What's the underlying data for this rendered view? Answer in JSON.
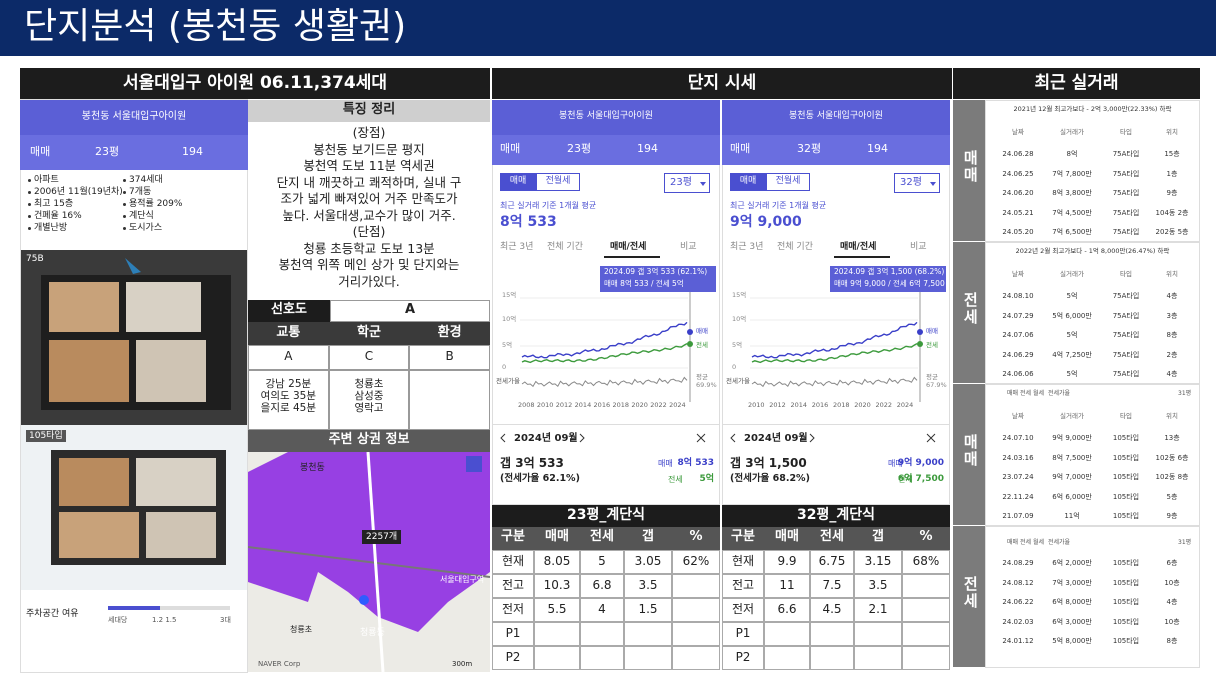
{
  "header": {
    "title": "단지분석 (봉천동 생활권)"
  },
  "sections": [
    "서울대입구 아이원 06.11,374세대",
    "단지 시세",
    "최근 실거래"
  ],
  "app": {
    "nav": "봉천동 서울대입구아이원",
    "tabs": [
      "매매",
      "23평",
      "194"
    ],
    "info": [
      "아파트",
      "374세대",
      "2006년 11월(19년차)",
      "7개동",
      "최고 15층",
      "용적률 209%",
      "건폐율 16%",
      "계단식",
      "개별난방",
      "도시가스"
    ],
    "plans": [
      "75B",
      "105타입"
    ],
    "parking": {
      "label": "주차공간 여유",
      "scale": [
        "세대당",
        "1.2 1.5",
        "3대"
      ]
    }
  },
  "features": {
    "title": "특징 정리",
    "lines": [
      "(장점)",
      "봉천동 보기드문 평지",
      "봉천역 도보 11분 역세권",
      "단지 내 깨끗하고 쾌적하며, 실내 구",
      "조가 넓게 빠져있어 거주 만족도가",
      "높다. 서울대생,교수가 많이 거주.",
      "(단점)",
      "청룡 초등학교 도보 13분",
      "봉천역 위쪽 메인 상가 및 단지와는",
      "거리가있다."
    ]
  },
  "rating": {
    "label": "선호도",
    "grade": "A",
    "headers": [
      "교통",
      "학군",
      "환경"
    ],
    "grades": [
      "A",
      "C",
      "B"
    ],
    "notes": [
      [
        "강남 25분",
        "여의도 35분",
        "을지로 45분"
      ],
      [
        "청룡초",
        "삼성중",
        "영락고"
      ]
    ]
  },
  "commercial": {
    "title": "주변 상권 정보",
    "count": "2257개",
    "labels": [
      "봉천동",
      "서울대입구역",
      "청룡동",
      "청룡초",
      "300m",
      "NAVER Corp"
    ]
  },
  "prices": [
    {
      "nav": "봉천동 서울대입구아이원",
      "tabs": [
        "매매",
        "23평",
        "194"
      ],
      "toggle": [
        "매매",
        "전월세"
      ],
      "select": "23평",
      "caption": "최근 실거래 기준 1개월 평균",
      "price": "8억 533",
      "periods": [
        "최근 3년",
        "전체 기간",
        "매매/전세",
        "비교"
      ],
      "tooltip": [
        "2024.09 갭 3억 533 (62.1%)",
        "매매 8억 533 / 전세 5억"
      ],
      "yaxis": [
        "15억",
        "10억",
        "5억",
        "0"
      ],
      "ratio_label": "전세가율",
      "legend": [
        "매매",
        "전세"
      ],
      "avg": [
        "평균",
        "69.9%"
      ],
      "years": [
        "2008",
        "2010",
        "2012",
        "2014",
        "2016",
        "2018",
        "2020",
        "2022",
        "2024"
      ],
      "month": "2024년 09월",
      "gap": "갭 3억 533",
      "ratio": "(전세가율 62.1%)",
      "sale": [
        "매매",
        "8억 533"
      ],
      "jeonse": [
        "전세",
        "5억"
      ]
    },
    {
      "nav": "봉천동 서울대입구아이원",
      "tabs": [
        "매매",
        "32평",
        "194"
      ],
      "toggle": [
        "매매",
        "전월세"
      ],
      "select": "32평",
      "caption": "최근 실거래 기준 1개월 평균",
      "price": "9억 9,000",
      "periods": [
        "최근 3년",
        "전체 기간",
        "매매/전세",
        "비교"
      ],
      "tooltip": [
        "2024.09 갭 3억 1,500 (68.2%)",
        "매매 9억 9,000 / 전세 6억 7,500"
      ],
      "yaxis": [
        "15억",
        "10억",
        "5억",
        "0"
      ],
      "ratio_label": "전세가율",
      "legend": [
        "매매",
        "전세"
      ],
      "avg": [
        "평균",
        "67.9%"
      ],
      "years": [
        "2010",
        "2012",
        "2014",
        "2016",
        "2018",
        "2020",
        "2022",
        "2024"
      ],
      "month": "2024년 09월",
      "gap": "갭 3억 1,500",
      "ratio": "(전세가율 68.2%)",
      "sale": [
        "매매",
        "9억 9,000"
      ],
      "jeonse": [
        "전세",
        "6억 7,500"
      ]
    }
  ],
  "tables": [
    {
      "title": "23평_계단식",
      "header": [
        "구분",
        "매매",
        "전세",
        "갭",
        "%"
      ],
      "rows": [
        [
          "현재",
          "8.05",
          "5",
          "3.05",
          "62%"
        ],
        [
          "전고",
          "10.3",
          "6.8",
          "3.5",
          null
        ],
        [
          "전저",
          "5.5",
          "4",
          "1.5",
          null
        ],
        [
          "P1",
          null,
          null,
          null,
          null
        ],
        [
          "P2",
          null,
          null,
          null,
          null
        ]
      ]
    },
    {
      "title": "32평_계단식",
      "header": [
        "구분",
        "매매",
        "전세",
        "갭",
        "%"
      ],
      "rows": [
        [
          "현재",
          "9.9",
          "6.75",
          "3.15",
          "68%"
        ],
        [
          "전고",
          "11",
          "7.5",
          "3.5",
          null
        ],
        [
          "전저",
          "6.6",
          "4.5",
          "2.1",
          null
        ],
        [
          "P1",
          null,
          null,
          null,
          null
        ],
        [
          "P2",
          null,
          null,
          null,
          null
        ]
      ]
    }
  ],
  "trades": [
    {
      "side": "매매",
      "note": "2021년 12월 최고가보다 - 2억 3,000만(22.33%) 하락",
      "columns": [
        "날짜",
        "실거래가",
        "타입",
        "위치"
      ],
      "rows": [
        [
          "24.06.28",
          "8억",
          "75A타입",
          "15층"
        ],
        [
          "24.06.25",
          "7억 7,800만",
          "75A타입",
          "1층"
        ],
        [
          "24.06.20",
          "8억 3,800만",
          "75A타입",
          "9층"
        ],
        [
          "24.05.21",
          "7억 4,500만",
          "75A타입",
          "104동 2층"
        ],
        [
          "24.05.20",
          "7억 6,500만",
          "75A타입",
          "202동 5층"
        ]
      ]
    },
    {
      "side": "전세",
      "note": "2022년 2월 최고가보다 - 1억 8,000만(26.47%) 하락",
      "columns": [
        "날짜",
        "실거래가",
        "타입",
        "위치"
      ],
      "rows": [
        [
          "24.08.10",
          "5억",
          "75A타입",
          "4층"
        ],
        [
          "24.07.29",
          "5억 6,000만",
          "75A타입",
          "3층"
        ],
        [
          "24.07.06",
          "5억",
          "75A타입",
          "8층"
        ],
        [
          "24.06.29",
          "4억 7,250만",
          "75A타입",
          "2층"
        ],
        [
          "24.06.06",
          "5억",
          "75A타입",
          "4층"
        ]
      ]
    },
    {
      "side": "매매",
      "filters": [
        "매매",
        "전세",
        "월세",
        "전세가율"
      ],
      "select": "31평",
      "columns": [
        "날짜",
        "실거래가",
        "타입",
        "위치"
      ],
      "rows": [
        [
          "24.07.10",
          "9억 9,000만",
          "105타입",
          "13층"
        ],
        [
          "24.03.16",
          "8억 7,500만",
          "105타입",
          "102동 6층"
        ],
        [
          "23.07.24",
          "9억 7,000만",
          "105타입",
          "102동 8층"
        ],
        [
          "22.11.24",
          "6억 6,000만",
          "105타입",
          "5층"
        ],
        [
          "21.07.09",
          "11억",
          "105타입",
          "9층"
        ]
      ]
    },
    {
      "side": "전세",
      "filters": [
        "매매",
        "전세",
        "월세",
        "전세가율"
      ],
      "select": "31평",
      "rows": [
        [
          "24.08.29",
          "6억 2,000만",
          "105타입",
          "6층"
        ],
        [
          "24.08.12",
          "7억 3,000만",
          "105타입",
          "10층"
        ],
        [
          "24.06.22",
          "6억 8,000만",
          "105타입",
          "4층"
        ],
        [
          "24.02.03",
          "6억 3,000만",
          "105타입",
          "10층"
        ],
        [
          "24.01.12",
          "5억 8,000만",
          "105타입",
          "8층"
        ]
      ]
    }
  ]
}
